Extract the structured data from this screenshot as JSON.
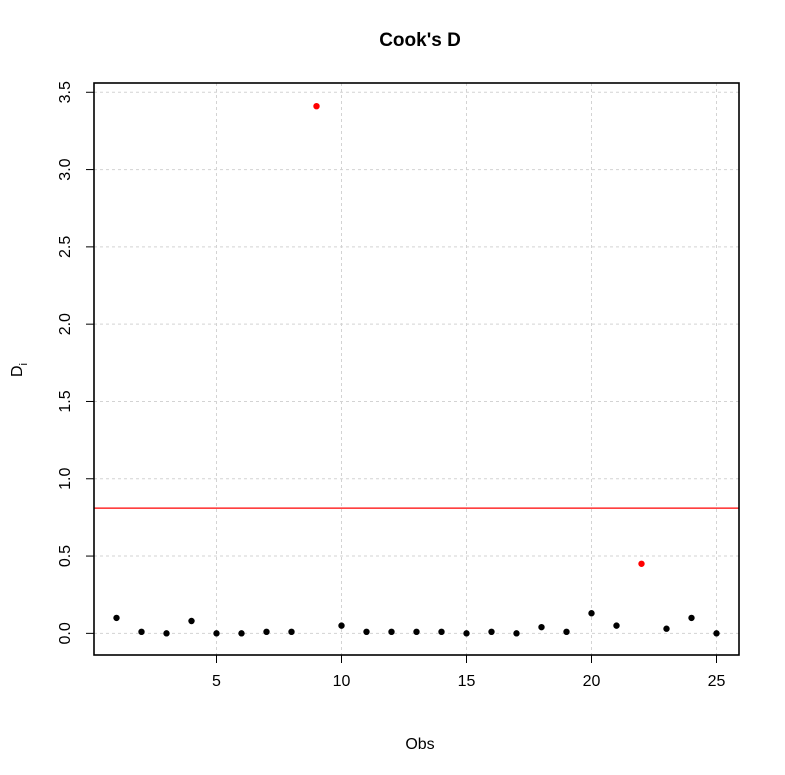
{
  "chart_data": {
    "type": "scatter",
    "title": "Cook's D",
    "xlabel": "Obs",
    "ylabel_main": "D",
    "ylabel_sub": "i",
    "xlim": [
      0.1,
      25.9
    ],
    "ylim": [
      -0.14,
      3.56
    ],
    "xticks": [
      5,
      10,
      15,
      20,
      25
    ],
    "yticks": [
      0.0,
      0.5,
      1.0,
      1.5,
      2.0,
      2.5,
      3.0,
      3.5
    ],
    "xtick_labels": [
      "5",
      "10",
      "15",
      "20",
      "25"
    ],
    "ytick_labels": [
      "0.0",
      "0.5",
      "1.0",
      "1.5",
      "2.0",
      "2.5",
      "3.0",
      "3.5"
    ],
    "grid": true,
    "threshold": 0.81,
    "colors": {
      "normal": "#000000",
      "influential": "#ff0000",
      "threshold": "#ff0000",
      "grid": "#d3d3d3"
    },
    "points": [
      {
        "x": 1,
        "y": 0.1,
        "influential": false
      },
      {
        "x": 2,
        "y": 0.01,
        "influential": false
      },
      {
        "x": 3,
        "y": 0.0,
        "influential": false
      },
      {
        "x": 4,
        "y": 0.08,
        "influential": false
      },
      {
        "x": 5,
        "y": 0.0,
        "influential": false
      },
      {
        "x": 6,
        "y": 0.0,
        "influential": false
      },
      {
        "x": 7,
        "y": 0.01,
        "influential": false
      },
      {
        "x": 8,
        "y": 0.01,
        "influential": false
      },
      {
        "x": 9,
        "y": 3.41,
        "influential": true
      },
      {
        "x": 10,
        "y": 0.05,
        "influential": false
      },
      {
        "x": 11,
        "y": 0.01,
        "influential": false
      },
      {
        "x": 12,
        "y": 0.01,
        "influential": false
      },
      {
        "x": 13,
        "y": 0.01,
        "influential": false
      },
      {
        "x": 14,
        "y": 0.01,
        "influential": false
      },
      {
        "x": 15,
        "y": 0.0,
        "influential": false
      },
      {
        "x": 16,
        "y": 0.01,
        "influential": false
      },
      {
        "x": 17,
        "y": 0.0,
        "influential": false
      },
      {
        "x": 18,
        "y": 0.04,
        "influential": false
      },
      {
        "x": 19,
        "y": 0.01,
        "influential": false
      },
      {
        "x": 20,
        "y": 0.13,
        "influential": false
      },
      {
        "x": 21,
        "y": 0.05,
        "influential": false
      },
      {
        "x": 22,
        "y": 0.45,
        "influential": true
      },
      {
        "x": 23,
        "y": 0.03,
        "influential": false
      },
      {
        "x": 24,
        "y": 0.1,
        "influential": false
      },
      {
        "x": 25,
        "y": 0.0,
        "influential": false
      }
    ]
  }
}
